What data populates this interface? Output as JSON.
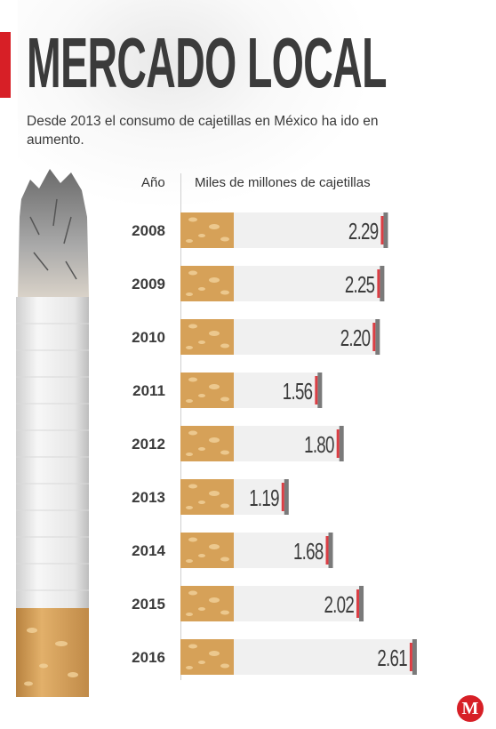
{
  "header": {
    "title": "MERCADO LOCAL",
    "subtitle": "Desde 2013 el consumo de cajetillas en México ha ido en aumento."
  },
  "columns": {
    "year_label": "Año",
    "value_label": "Miles de millones de cajetillas"
  },
  "brand": {
    "logo_letter": "M"
  },
  "colors": {
    "accent": "#d71f26",
    "filter": "#d6a158",
    "paper": "#f0f0f0",
    "text_dark": "#3b3b3b"
  },
  "chart_data": {
    "type": "bar",
    "orientation": "horizontal",
    "title": "MERCADO LOCAL",
    "subtitle": "Desde 2013 el consumo de cajetillas en México ha ido en aumento.",
    "xlabel": "Miles de millones de cajetillas",
    "ylabel": "Año",
    "categories": [
      "2008",
      "2009",
      "2010",
      "2011",
      "2012",
      "2013",
      "2014",
      "2015",
      "2016"
    ],
    "values": [
      2.29,
      2.25,
      2.2,
      1.56,
      1.8,
      1.19,
      1.68,
      2.02,
      2.61
    ],
    "value_labels": [
      "2.29",
      "2.25",
      "2.20",
      "1.56",
      "1.80",
      "1.19",
      "1.68",
      "2.02",
      "2.61"
    ],
    "xlim": [
      0,
      2.61
    ],
    "grid": false,
    "legend": "none"
  }
}
